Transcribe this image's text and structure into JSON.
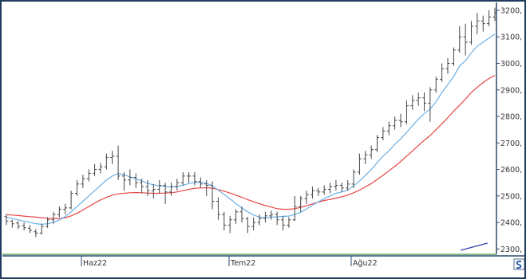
{
  "chart_data": {
    "type": "ohlc",
    "title": "",
    "x_ticks": [
      "Haz22",
      "Tem22",
      "Ağu22"
    ],
    "y_ticks": [
      "2300,",
      "2400,",
      "2500,",
      "2600,",
      "2700,",
      "2800,",
      "2900,",
      "3000,",
      "3100,",
      "3200,"
    ],
    "ylim": [
      2280,
      3230
    ],
    "grid": false,
    "legend": "none",
    "colors": {
      "bars": "#444444",
      "fast_ma": "#6ab0e6",
      "slow_ma": "#e64646",
      "indicator_line": "#3344aa",
      "baseline": "#3a9a3a",
      "frame": "#1f3b5e"
    },
    "ohlc": [
      [
        2422,
        2430,
        2390,
        2405
      ],
      [
        2405,
        2410,
        2380,
        2395
      ],
      [
        2398,
        2405,
        2375,
        2385
      ],
      [
        2388,
        2400,
        2370,
        2380
      ],
      [
        2378,
        2390,
        2360,
        2370
      ],
      [
        2365,
        2375,
        2345,
        2360
      ],
      [
        2360,
        2395,
        2355,
        2385
      ],
      [
        2385,
        2420,
        2380,
        2410
      ],
      [
        2410,
        2440,
        2395,
        2430
      ],
      [
        2430,
        2460,
        2420,
        2450
      ],
      [
        2450,
        2470,
        2430,
        2455
      ],
      [
        2455,
        2520,
        2450,
        2510
      ],
      [
        2510,
        2560,
        2500,
        2545
      ],
      [
        2545,
        2580,
        2530,
        2565
      ],
      [
        2565,
        2600,
        2555,
        2585
      ],
      [
        2585,
        2620,
        2575,
        2600
      ],
      [
        2600,
        2625,
        2585,
        2610
      ],
      [
        2610,
        2660,
        2600,
        2645
      ],
      [
        2645,
        2670,
        2620,
        2650
      ],
      [
        2650,
        2690,
        2560,
        2575
      ],
      [
        2575,
        2590,
        2520,
        2560
      ],
      [
        2560,
        2600,
        2540,
        2570
      ],
      [
        2570,
        2585,
        2530,
        2550
      ],
      [
        2550,
        2565,
        2510,
        2535
      ],
      [
        2535,
        2560,
        2500,
        2520
      ],
      [
        2520,
        2545,
        2490,
        2525
      ],
      [
        2525,
        2560,
        2510,
        2540
      ],
      [
        2540,
        2550,
        2470,
        2515
      ],
      [
        2515,
        2550,
        2500,
        2535
      ],
      [
        2535,
        2565,
        2520,
        2550
      ],
      [
        2550,
        2590,
        2540,
        2575
      ],
      [
        2575,
        2590,
        2550,
        2575
      ],
      [
        2575,
        2590,
        2540,
        2555
      ],
      [
        2555,
        2570,
        2530,
        2545
      ],
      [
        2545,
        2560,
        2500,
        2540
      ],
      [
        2540,
        2555,
        2450,
        2480
      ],
      [
        2480,
        2495,
        2410,
        2430
      ],
      [
        2430,
        2440,
        2370,
        2390
      ],
      [
        2390,
        2425,
        2360,
        2410
      ],
      [
        2410,
        2450,
        2395,
        2440
      ],
      [
        2440,
        2460,
        2400,
        2415
      ],
      [
        2415,
        2420,
        2360,
        2385
      ],
      [
        2385,
        2420,
        2370,
        2400
      ],
      [
        2400,
        2430,
        2390,
        2415
      ],
      [
        2415,
        2440,
        2400,
        2425
      ],
      [
        2425,
        2445,
        2410,
        2430
      ],
      [
        2430,
        2440,
        2390,
        2410
      ],
      [
        2410,
        2425,
        2370,
        2390
      ],
      [
        2390,
        2420,
        2380,
        2410
      ],
      [
        2410,
        2500,
        2405,
        2460
      ],
      [
        2460,
        2500,
        2440,
        2490
      ],
      [
        2490,
        2520,
        2470,
        2505
      ],
      [
        2505,
        2535,
        2490,
        2520
      ],
      [
        2520,
        2530,
        2500,
        2515
      ],
      [
        2515,
        2540,
        2505,
        2525
      ],
      [
        2525,
        2550,
        2510,
        2535
      ],
      [
        2535,
        2560,
        2520,
        2540
      ],
      [
        2540,
        2550,
        2515,
        2530
      ],
      [
        2530,
        2560,
        2520,
        2545
      ],
      [
        2545,
        2600,
        2530,
        2590
      ],
      [
        2590,
        2660,
        2580,
        2640
      ],
      [
        2640,
        2670,
        2620,
        2655
      ],
      [
        2655,
        2690,
        2640,
        2675
      ],
      [
        2675,
        2730,
        2665,
        2720
      ],
      [
        2720,
        2760,
        2710,
        2745
      ],
      [
        2745,
        2780,
        2730,
        2765
      ],
      [
        2765,
        2800,
        2750,
        2785
      ],
      [
        2785,
        2810,
        2760,
        2780
      ],
      [
        2780,
        2860,
        2770,
        2840
      ],
      [
        2840,
        2880,
        2825,
        2860
      ],
      [
        2860,
        2890,
        2840,
        2870
      ],
      [
        2870,
        2890,
        2820,
        2850
      ],
      [
        2850,
        2910,
        2780,
        2900
      ],
      [
        2900,
        2950,
        2890,
        2940
      ],
      [
        2940,
        3000,
        2930,
        2980
      ],
      [
        2980,
        3020,
        2960,
        3000
      ],
      [
        3000,
        3060,
        2990,
        3050
      ],
      [
        3050,
        3140,
        3040,
        3100
      ],
      [
        3100,
        3150,
        3030,
        3080
      ],
      [
        3080,
        3160,
        3070,
        3140
      ],
      [
        3140,
        3190,
        3110,
        3160
      ],
      [
        3160,
        3180,
        3120,
        3150
      ],
      [
        3150,
        3200,
        3140,
        3175
      ],
      [
        3175,
        3210,
        3160,
        3190
      ]
    ],
    "fast_ma": [
      2420,
      2415,
      2410,
      2405,
      2400,
      2395,
      2393,
      2395,
      2400,
      2410,
      2422,
      2440,
      2460,
      2480,
      2500,
      2520,
      2540,
      2560,
      2575,
      2585,
      2580,
      2572,
      2565,
      2557,
      2548,
      2542,
      2538,
      2536,
      2534,
      2536,
      2540,
      2547,
      2551,
      2551,
      2548,
      2538,
      2522,
      2506,
      2489,
      2471,
      2455,
      2440,
      2428,
      2420,
      2418,
      2420,
      2421,
      2423,
      2424,
      2430,
      2438,
      2451,
      2465,
      2478,
      2490,
      2500,
      2510,
      2515,
      2522,
      2538,
      2556,
      2578,
      2600,
      2625,
      2650,
      2670,
      2695,
      2715,
      2740,
      2765,
      2790,
      2810,
      2828,
      2855,
      2890,
      2920,
      2950,
      2990,
      3010,
      3040,
      3065,
      3080,
      3095,
      3110
    ],
    "slow_ma": [
      2430,
      2428,
      2426,
      2424,
      2422,
      2420,
      2418,
      2416,
      2415,
      2415,
      2418,
      2425,
      2435,
      2447,
      2460,
      2473,
      2485,
      2495,
      2503,
      2508,
      2510,
      2512,
      2513,
      2512,
      2511,
      2510,
      2510,
      2511,
      2512,
      2515,
      2520,
      2525,
      2529,
      2530,
      2531,
      2529,
      2524,
      2518,
      2511,
      2503,
      2495,
      2486,
      2478,
      2471,
      2464,
      2458,
      2452,
      2450,
      2450,
      2452,
      2457,
      2463,
      2470,
      2477,
      2483,
      2487,
      2492,
      2497,
      2503,
      2512,
      2522,
      2534,
      2547,
      2562,
      2578,
      2595,
      2612,
      2630,
      2650,
      2670,
      2690,
      2710,
      2728,
      2750,
      2772,
      2795,
      2820,
      2842,
      2865,
      2890,
      2910,
      2928,
      2943,
      2955
    ],
    "indicator_line": [
      [
        0.93,
        2295
      ],
      [
        0.985,
        2322
      ]
    ]
  }
}
